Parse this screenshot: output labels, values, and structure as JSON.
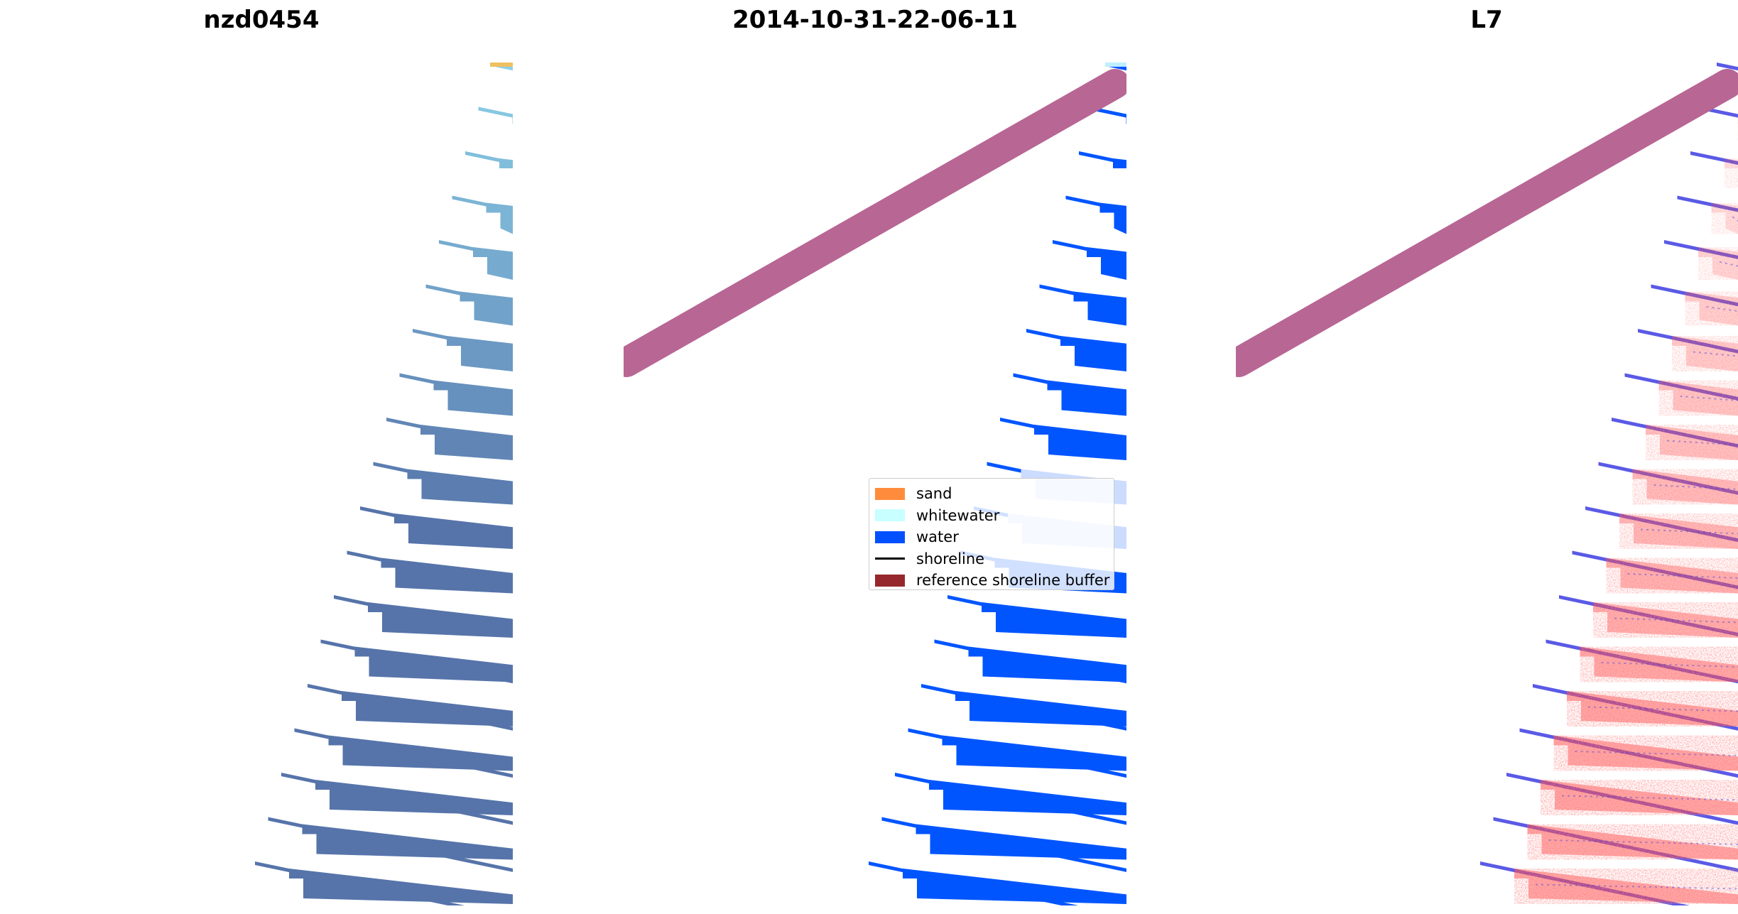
{
  "panels": [
    {
      "title": "nzd0454",
      "content": "rgb-image"
    },
    {
      "title": "2014-10-31-22-06-11",
      "content": "classification"
    },
    {
      "title": "L7",
      "content": "mndwi"
    }
  ],
  "legend": {
    "items": [
      {
        "label": "sand",
        "type": "patch",
        "color": "#ff8c3c"
      },
      {
        "label": "whitewater",
        "type": "patch",
        "color": "#c8ffff"
      },
      {
        "label": "water",
        "type": "patch",
        "color": "#0050ff"
      },
      {
        "label": "shoreline",
        "type": "line",
        "color": "#000000"
      },
      {
        "label": "reference shoreline buffer",
        "type": "patch",
        "color": "#96282d"
      }
    ]
  },
  "colors": {
    "reference_buffer_overlay": "#b86694",
    "classified_water": "#0055ff",
    "mndwi_positive": "#ff2020",
    "mndwi_negative": "#4040e0"
  }
}
